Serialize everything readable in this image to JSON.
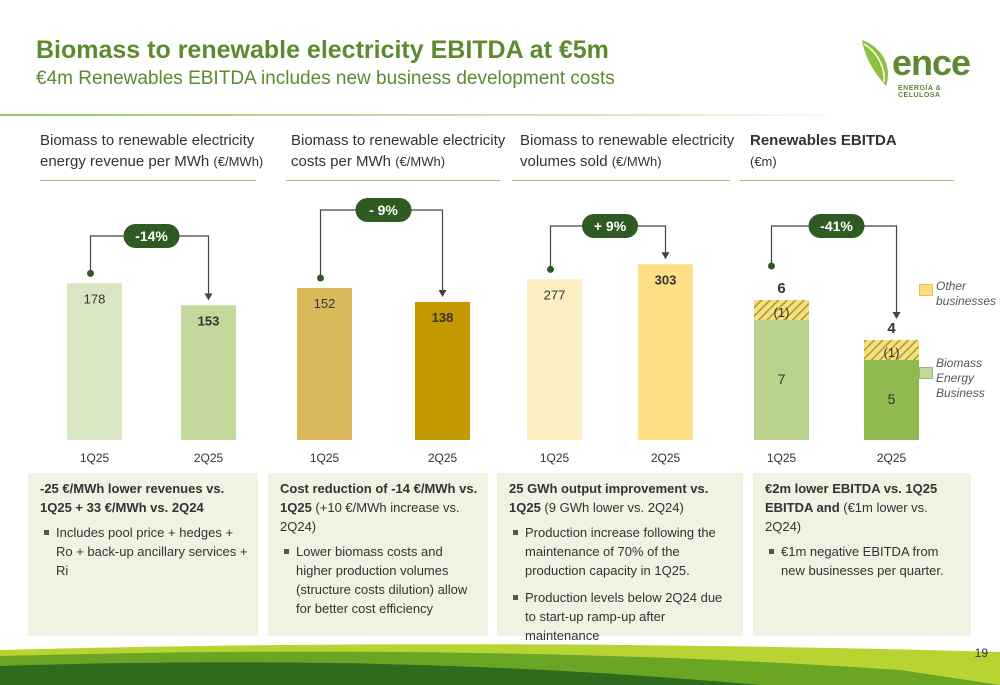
{
  "title": "Biomass to renewable electricity EBITDA at €5m",
  "subtitle": "€4m Renewables EBITDA includes new business development costs",
  "logo": {
    "word": "ence",
    "sub": "ENERGÍA & CELULOSA"
  },
  "page_number": "19",
  "panels": [
    {
      "head": "Biomass to renewable electricity energy revenue per MWh",
      "unit": "(€/MWh)"
    },
    {
      "head": "Biomass to renewable electricity costs per MWh",
      "unit": "(€/MWh)"
    },
    {
      "head": "Biomass to renewable electricity volumes sold",
      "unit": "(€/MWh)"
    },
    {
      "head": "Renewables EBITDA",
      "unit": "(€m)"
    }
  ],
  "chart_data": [
    {
      "type": "bar",
      "categories": [
        "1Q25",
        "2Q25"
      ],
      "values": [
        178,
        153
      ],
      "change_label": "-14%",
      "colors": [
        "#d9e6c3",
        "#c3d99b"
      ]
    },
    {
      "type": "bar",
      "categories": [
        "1Q25",
        "2Q25"
      ],
      "values": [
        152,
        138
      ],
      "change_label": "- 9%",
      "colors": [
        "#d9b95a",
        "#c49a00"
      ]
    },
    {
      "type": "bar",
      "categories": [
        "1Q25",
        "2Q25"
      ],
      "values": [
        277,
        303
      ],
      "change_label": "+ 9%",
      "colors": [
        "#fcefc4",
        "#fedf86"
      ]
    },
    {
      "type": "bar",
      "stacked": true,
      "categories": [
        "1Q25",
        "2Q25"
      ],
      "totals": [
        6,
        4
      ],
      "change_label": "-41%",
      "series": [
        {
          "name": "Biomass Energy Business",
          "values": [
            7,
            5
          ],
          "colors": [
            "#b9d28d",
            "#8fb84e"
          ]
        },
        {
          "name": "Other businesses",
          "values": [
            -1,
            -1
          ],
          "labels": [
            "(1)",
            "(1)"
          ]
        }
      ],
      "legend": [
        {
          "label": "Other businesses",
          "color": "#fedc80"
        },
        {
          "label": "Biomass Energy Business",
          "color": "#c3d99b"
        }
      ]
    }
  ],
  "boxes": [
    {
      "lead": "-25 €/MWh lower revenues vs. 1Q25 + 33 €/MWh vs. 2Q24",
      "lead_rest": "",
      "bullets": [
        "Includes pool price + hedges + Ro + back-up ancillary services + Ri"
      ]
    },
    {
      "lead": "Cost reduction of -14 €/MWh vs. 1Q25",
      "lead_rest": " (+10 €/MWh increase vs. 2Q24)",
      "bullets": [
        "Lower biomass costs and higher production volumes (structure costs dilution) allow for better cost efficiency"
      ]
    },
    {
      "lead": "25 GWh output improvement vs. 1Q25",
      "lead_rest": " (9 GWh lower vs. 2Q24)",
      "bullets": [
        "Production increase following the maintenance of 70% of the production capacity in 1Q25.",
        "Production levels below 2Q24 due to start-up ramp-up after maintenance"
      ]
    },
    {
      "lead": "€2m lower EBITDA vs. 1Q25 EBITDA and",
      "lead_rest": " (€1m lower vs. 2Q24)",
      "bullets": [
        "€1m negative EBITDA from new businesses per quarter."
      ]
    }
  ],
  "colors": {
    "accent": "#5d8a2e",
    "badge": "#2f5a22",
    "rule": "#9cc468"
  }
}
